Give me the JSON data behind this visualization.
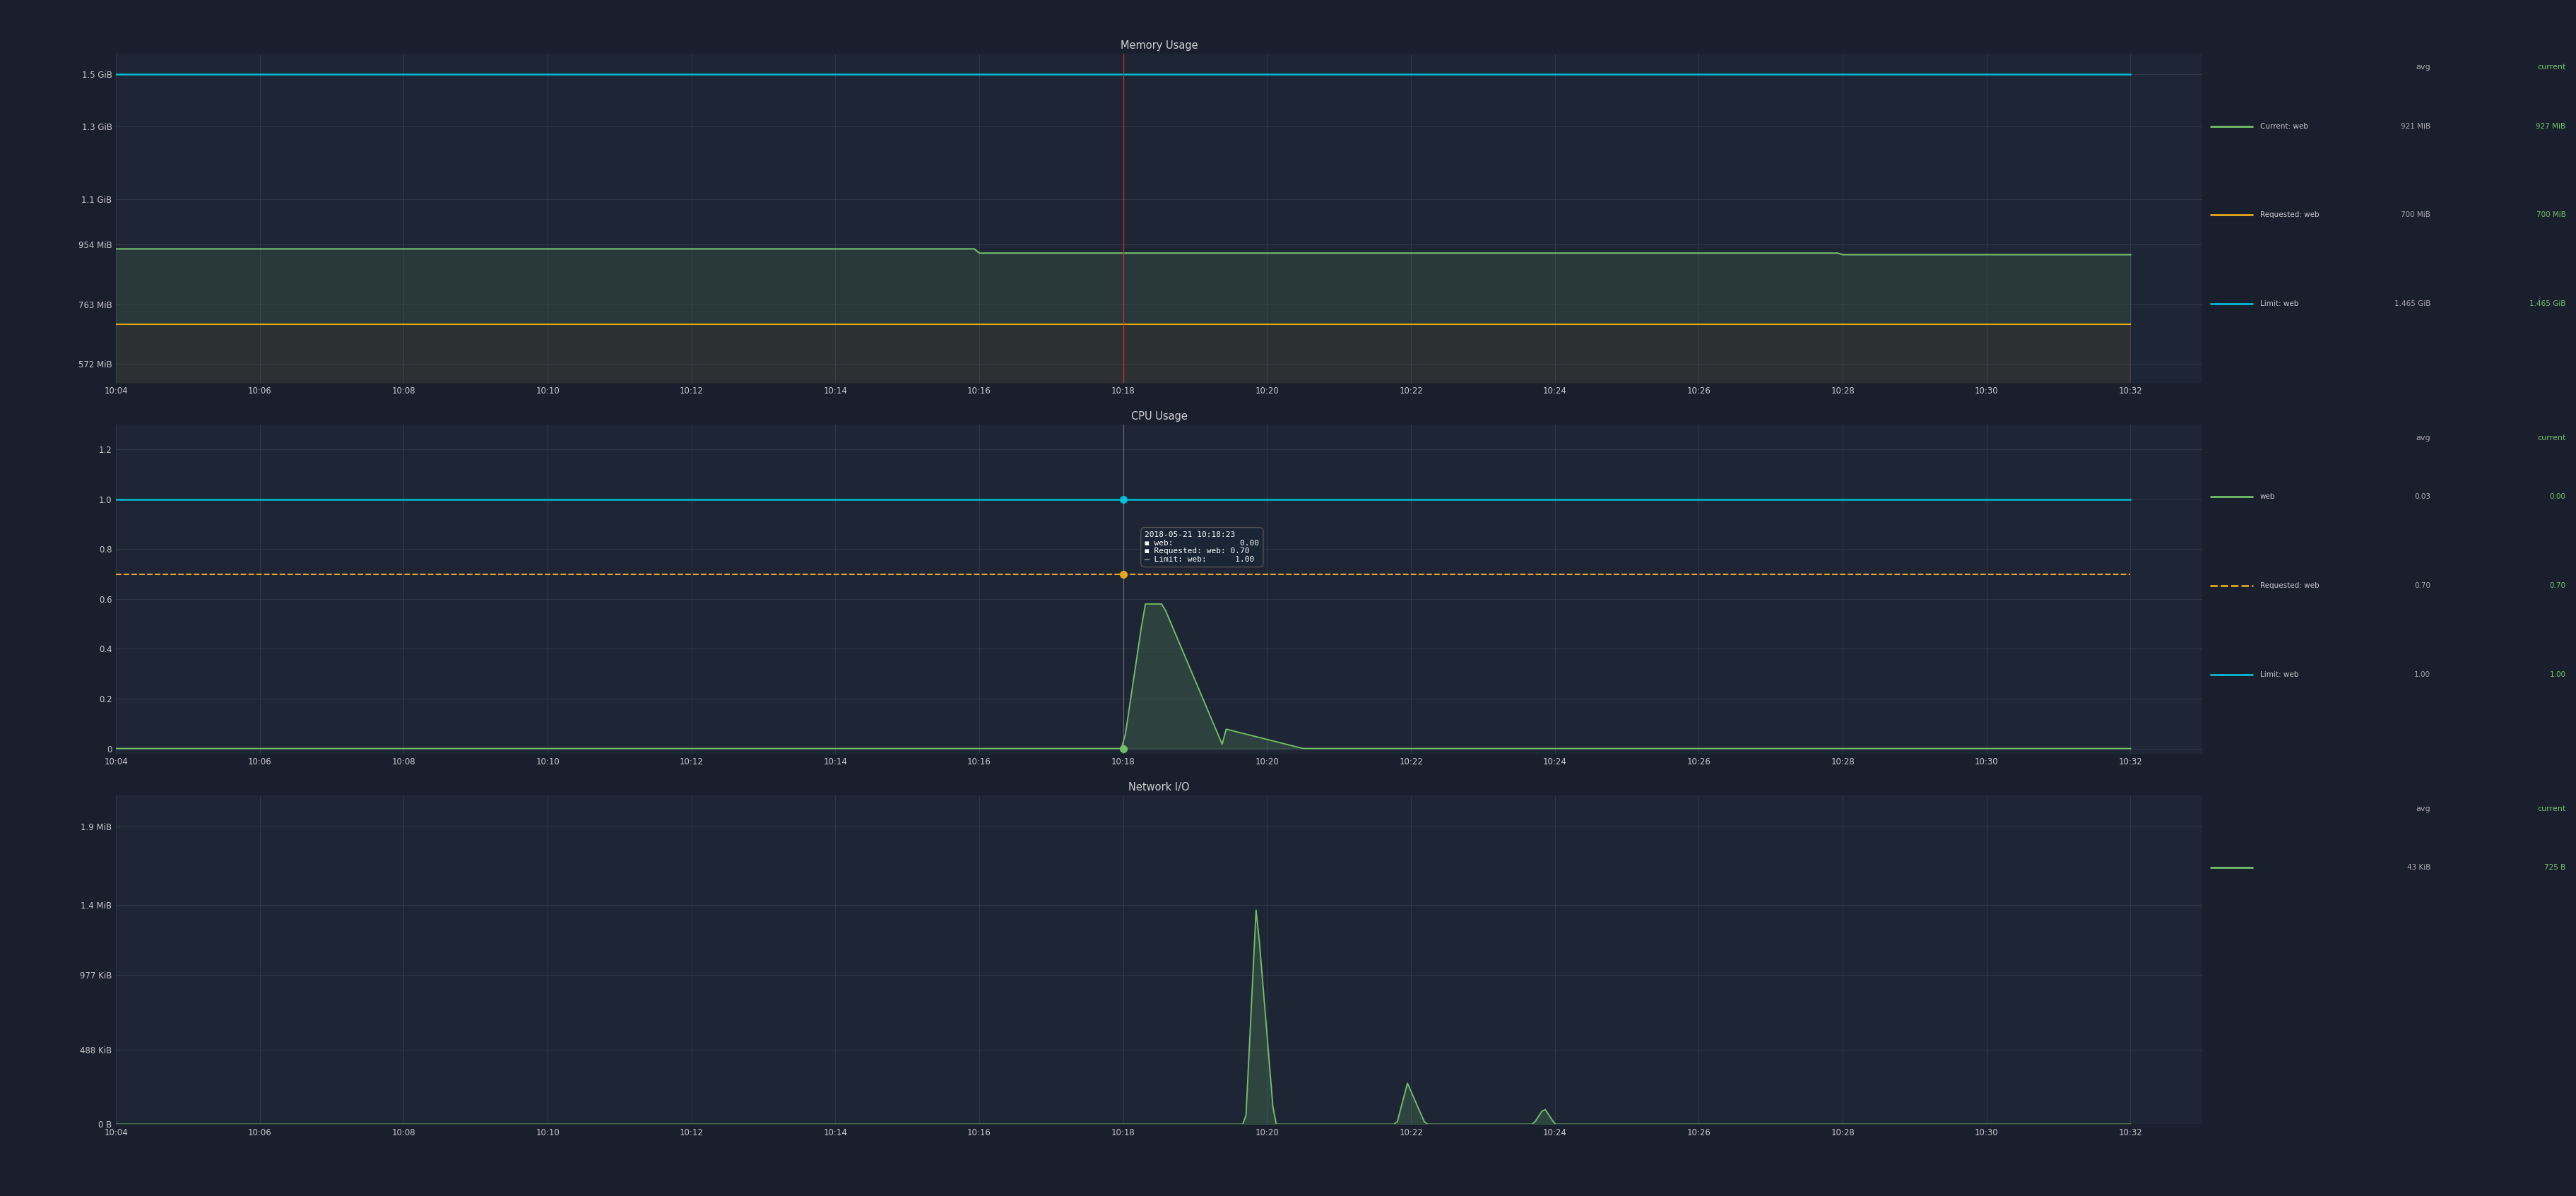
{
  "bg_color": "#1a1f2e",
  "panel_bg": "#1e2635",
  "panel_bg2": "#232d3f",
  "grid_color": "#374055",
  "text_color": "#c8c8c8",
  "title_color": "#d0d0d0",
  "memory": {
    "title": "Memory Usage",
    "yticks": [
      "572 MiB",
      "763 MiB",
      "954 MiB",
      "1.1 GiB",
      "1.3 GiB",
      "1.5 GiB"
    ],
    "ytick_vals": [
      599785472,
      800073728,
      1000361984,
      1153433600,
      1395864371,
      1572864000
    ],
    "ylim": [
      536870912,
      1640000000
    ],
    "xticks": [
      "10:04",
      "10:06",
      "10:08",
      "10:10",
      "10:12",
      "10:14",
      "10:16",
      "10:18",
      "10:20",
      "10:22",
      "10:24",
      "10:26",
      "10:28",
      "10:30",
      "10:32"
    ],
    "xtick_vals": [
      0,
      2,
      4,
      6,
      8,
      10,
      12,
      14,
      16,
      18,
      20,
      22,
      24,
      26,
      28
    ],
    "xlim": [
      0,
      29
    ],
    "limit_val": 1572864000,
    "requested_val": 734003200,
    "current_val": 971669504,
    "current_val2": 966367232,
    "current_change_x": 12,
    "current_change2_x": 24,
    "vline_x": 14,
    "limit_color": "#00bcd4",
    "requested_color": "#e6a817",
    "current_color": "#73bf69",
    "legend_avg_current": "921 MiB",
    "legend_cur_current": "927 MiB",
    "legend_avg_requested": "700 MiB",
    "legend_cur_requested": "700 MiB",
    "legend_avg_limit": "1.465 GiB",
    "legend_cur_limit": "1.465 GiB"
  },
  "cpu": {
    "title": "CPU Usage",
    "yticks": [
      "0",
      "0.2",
      "0.4",
      "0.6",
      "0.8",
      "1.0",
      "1.2"
    ],
    "ytick_vals": [
      0,
      0.2,
      0.4,
      0.6,
      0.8,
      1.0,
      1.2
    ],
    "ylim": [
      -0.02,
      1.3
    ],
    "xticks": [
      "10:04",
      "10:06",
      "10:08",
      "10:10",
      "10:12",
      "10:14",
      "10:16",
      "10:18",
      "10:20",
      "10:22",
      "10:24",
      "10:26",
      "10:28",
      "10:30",
      "10:32"
    ],
    "xtick_vals": [
      0,
      2,
      4,
      6,
      8,
      10,
      12,
      14,
      16,
      18,
      20,
      22,
      24,
      26,
      28
    ],
    "xlim": [
      0,
      29
    ],
    "limit_val": 1.0,
    "requested_val": 0.7,
    "web_color": "#73bf69",
    "requested_color": "#e6a817",
    "limit_color": "#00bcd4",
    "tooltip_x": 14,
    "tooltip_date": "2018-05-21 10:18:23",
    "tooltip_web": "0.00",
    "tooltip_requested": "0.70",
    "tooltip_limit": "1.00",
    "legend_avg_web": "0.03",
    "legend_cur_web": "0.00",
    "legend_avg_requested": "0.70",
    "legend_cur_requested": "0.70",
    "legend_avg_limit": "1.00",
    "legend_cur_limit": "1.00"
  },
  "network": {
    "title": "Network I/O",
    "yticks": [
      "0 B",
      "488 KiB",
      "977 KiB",
      "1.4 MiB",
      "1.9 MiB"
    ],
    "ytick_vals": [
      0,
      499712,
      1000448,
      1468006,
      1992294
    ],
    "ylim": [
      0,
      2200000
    ],
    "xticks": [
      "10:04",
      "10:06",
      "10:08",
      "10:10",
      "10:12",
      "10:14",
      "10:16",
      "10:18",
      "10:20",
      "10:22",
      "10:24",
      "10:26",
      "10:28",
      "10:30",
      "10:32"
    ],
    "xtick_vals": [
      0,
      2,
      4,
      6,
      8,
      10,
      12,
      14,
      16,
      18,
      20,
      22,
      24,
      26,
      28
    ],
    "xlim": [
      0,
      29
    ],
    "io_color": "#73bf69",
    "legend_avg": "43 KiB",
    "legend_current": "725 B"
  }
}
